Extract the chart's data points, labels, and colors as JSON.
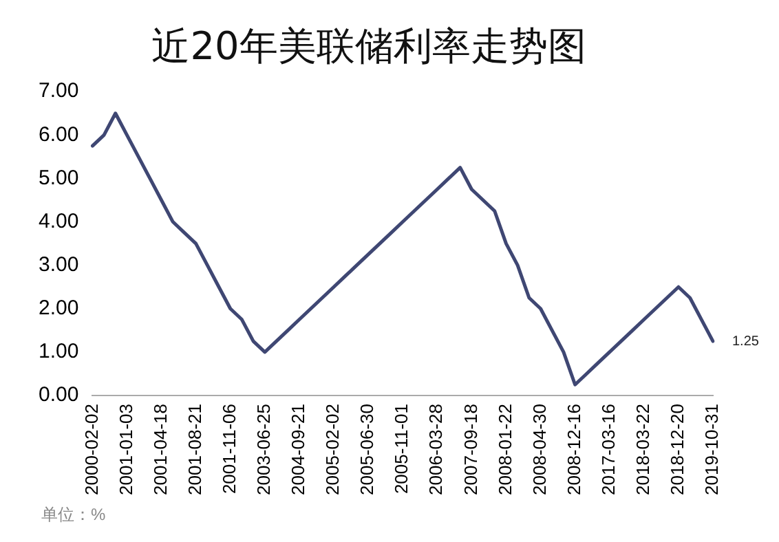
{
  "chart_data": {
    "type": "line",
    "title": "近20年美联储利率走势图",
    "categories": [
      "2000-02-02",
      null,
      null,
      "2001-01-03",
      null,
      null,
      "2001-04-18",
      null,
      null,
      "2001-08-21",
      null,
      null,
      "2001-11-06",
      null,
      null,
      "2003-06-25",
      null,
      null,
      "2004-09-21",
      null,
      null,
      "2005-02-02",
      null,
      null,
      "2005-06-30",
      null,
      null,
      "2005-11-01",
      null,
      null,
      "2006-03-28",
      null,
      null,
      "2007-09-18",
      null,
      null,
      "2008-01-22",
      null,
      null,
      "2008-04-30",
      null,
      null,
      "2008-12-16",
      null,
      null,
      "2017-03-16",
      null,
      null,
      "2018-03-22",
      null,
      null,
      "2018-12-20",
      null,
      null,
      "2019-10-31"
    ],
    "series": [
      {
        "color": "#3f4773",
        "values": [
          5.75,
          6.0,
          6.5,
          6.0,
          5.5,
          5.0,
          4.5,
          4.0,
          3.75,
          3.5,
          3.0,
          2.5,
          2.0,
          1.75,
          1.25,
          1.0,
          1.25,
          1.5,
          1.75,
          2.0,
          2.25,
          2.5,
          2.75,
          3.0,
          3.25,
          3.5,
          3.75,
          4.0,
          4.25,
          4.5,
          4.75,
          5.0,
          5.25,
          4.75,
          4.5,
          4.25,
          3.5,
          3.0,
          2.25,
          2.0,
          1.5,
          1.0,
          0.25,
          0.5,
          0.75,
          1.0,
          1.25,
          1.5,
          1.75,
          2.0,
          2.25,
          2.5,
          2.25,
          1.75,
          1.25
        ],
        "value_labels": [
          null,
          null,
          null,
          null,
          null,
          null,
          null,
          null,
          null,
          null,
          null,
          null,
          null,
          null,
          null,
          null,
          null,
          null,
          null,
          null,
          null,
          null,
          null,
          null,
          null,
          null,
          null,
          null,
          null,
          null,
          null,
          null,
          null,
          null,
          null,
          null,
          null,
          null,
          null,
          null,
          null,
          null,
          null,
          null,
          null,
          null,
          null,
          null,
          null,
          null,
          null,
          null,
          null,
          null,
          "1.25"
        ]
      }
    ],
    "ylim": [
      0,
      7
    ],
    "yticks": [
      {
        "value": 0,
        "label": "0.00"
      },
      {
        "value": 1,
        "label": "1.00"
      },
      {
        "value": 2,
        "label": "2.00"
      },
      {
        "value": 3,
        "label": "3.00"
      },
      {
        "value": 4,
        "label": "4.00"
      },
      {
        "value": 5,
        "label": "5.00"
      },
      {
        "value": 6,
        "label": "6.00"
      },
      {
        "value": 7,
        "label": "7.00"
      }
    ],
    "grid": false,
    "legend": false,
    "marker": "none",
    "line_style": "solid",
    "annotations": [
      "单位：%"
    ]
  }
}
